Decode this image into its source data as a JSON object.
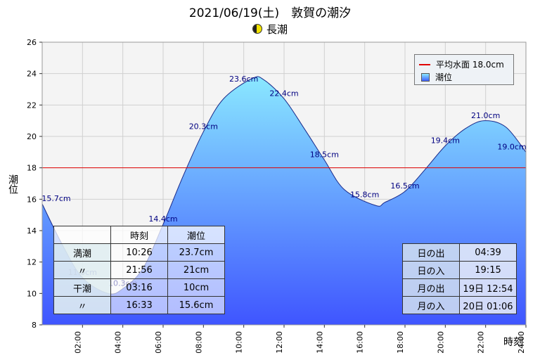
{
  "title": "2021/06/19(土)　敦賀の潮汐",
  "subtitle": "長潮",
  "legend": {
    "mean_label": "平均水面 18.0cm",
    "tide_label": "潮位"
  },
  "tide_table": {
    "headers": [
      "",
      "時刻",
      "潮位"
    ],
    "rows": [
      [
        "満潮",
        "10:26",
        "23.7cm"
      ],
      [
        "〃",
        "21:56",
        "21cm"
      ],
      [
        "干潮",
        "03:16",
        "10cm"
      ],
      [
        "〃",
        "16:33",
        "15.6cm"
      ]
    ]
  },
  "sun_table": {
    "rows": [
      [
        "日の出",
        "04:39"
      ],
      [
        "日の入",
        "19:15"
      ],
      [
        "月の出",
        "19日 12:54"
      ],
      [
        "月の入",
        "20日 01:06"
      ]
    ]
  },
  "chart_data": {
    "type": "area",
    "xlabel": "時刻",
    "ylabel": "潮位",
    "ylim": [
      8,
      26
    ],
    "xlim": [
      "00:00",
      "24:00"
    ],
    "yticks": [
      8,
      10,
      12,
      14,
      16,
      18,
      20,
      22,
      24,
      26
    ],
    "xticks": [
      "02:00",
      "04:00",
      "06:00",
      "08:00",
      "10:00",
      "12:00",
      "14:00",
      "16:00",
      "18:00",
      "20:00",
      "22:00",
      "24:00"
    ],
    "mean_level": 18.0,
    "grid": true,
    "legend_position": "top-right",
    "colors": {
      "mean_line": "#e00000",
      "fill_top": "#8ae8ff",
      "fill_bottom": "#3f55ff",
      "curve": "#1a2a8a",
      "label": "#000080"
    },
    "series": [
      {
        "name": "潮位",
        "x": [
          "00:00",
          "01:00",
          "02:00",
          "03:16",
          "04:00",
          "05:00",
          "06:00",
          "07:00",
          "08:00",
          "09:00",
          "10:26",
          "11:00",
          "12:00",
          "13:00",
          "14:00",
          "15:00",
          "16:33",
          "17:00",
          "18:00",
          "19:00",
          "20:00",
          "21:00",
          "21:56",
          "23:00",
          "24:00"
        ],
        "values": [
          15.7,
          13.1,
          11.0,
          10.0,
          10.3,
          11.6,
          14.4,
          17.5,
          20.3,
          22.4,
          23.7,
          23.6,
          22.4,
          20.5,
          18.5,
          16.6,
          15.6,
          15.8,
          16.5,
          17.9,
          19.4,
          20.5,
          21.0,
          20.6,
          19.0
        ]
      }
    ],
    "data_labels": [
      {
        "x": "00:00",
        "text": "15.7cm"
      },
      {
        "x": "02:00",
        "text": "11.0cm"
      },
      {
        "x": "04:00",
        "text": "10.3cm"
      },
      {
        "x": "06:00",
        "text": "14.4cm"
      },
      {
        "x": "08:00",
        "text": "20.3cm"
      },
      {
        "x": "10:00",
        "text": "23.6cm"
      },
      {
        "x": "12:00",
        "text": "22.4cm"
      },
      {
        "x": "14:00",
        "text": "18.5cm"
      },
      {
        "x": "16:00",
        "text": "15.8cm"
      },
      {
        "x": "18:00",
        "text": "16.5cm"
      },
      {
        "x": "20:00",
        "text": "19.4cm"
      },
      {
        "x": "22:00",
        "text": "21.0cm"
      },
      {
        "x": "24:00",
        "text": "19.0cm"
      }
    ]
  }
}
